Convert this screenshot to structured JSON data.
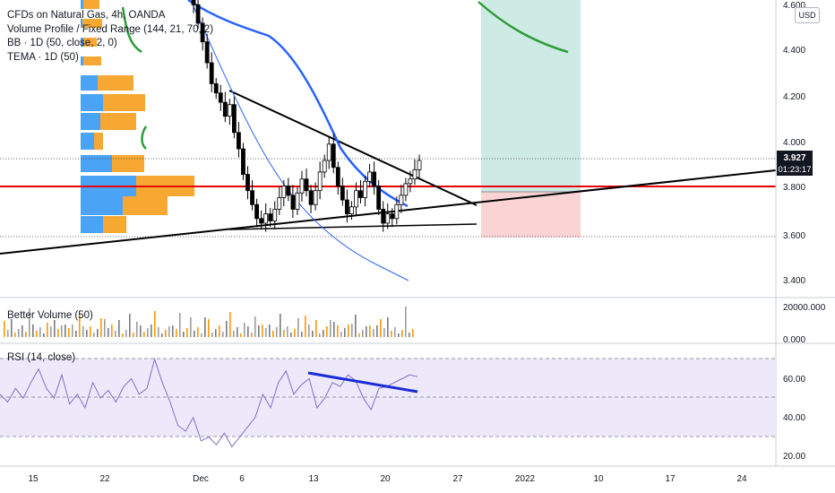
{
  "legend": {
    "symbol": "CFDs on Natural Gas, 4h, OANDA",
    "volume_profile": "Volume Profile / Fixed Range (144, 21, 70, 2)",
    "bb": "BB · 1D (50, close, 2, 0)",
    "tema": "TEMA · 1D (50)"
  },
  "currency_button": "USD",
  "price_axis": {
    "ticks": [
      "4.600",
      "4.400",
      "4.200",
      "4.000",
      "3.800",
      "3.600",
      "3.400"
    ],
    "current_price": "3.927",
    "countdown": "01:23:17"
  },
  "volume_pane": {
    "title": "Better Volume (50)",
    "ticks": [
      "20000.000",
      "0.000"
    ]
  },
  "rsi_pane": {
    "title": "RSI (14, close)",
    "ticks": [
      "60.00",
      "40.00",
      "20.00"
    ]
  },
  "time_axis": {
    "labels": [
      "15",
      "22",
      "Dec",
      "6",
      "13",
      "20",
      "27",
      "2022",
      "10",
      "17",
      "24"
    ]
  },
  "colors": {
    "up_candle": "#ffffff",
    "candle_outline": "#000000",
    "bb_line": "#2962ff",
    "ma_line": "#2e9c3a",
    "support_level": "#e60000",
    "trendline": "#000000",
    "vp_up": "#4aa3f5",
    "vp_down": "#f7a833",
    "rsi_line": "#7e6fc9",
    "rsi_band": "#ede9fa",
    "divergence_line": "#1b2bd6",
    "target_zone": "#cdeae4",
    "stop_zone": "#fad4d4"
  },
  "chart_data": {
    "type": "candlestick",
    "symbol": "Natural Gas",
    "timeframe": "4h",
    "y_range": [
      3.34,
      4.62
    ],
    "current_price": 3.927,
    "support_level": 3.8,
    "price_series_close": [
      4.66,
      4.6,
      4.52,
      4.44,
      4.35,
      4.26,
      4.22,
      4.18,
      4.12,
      4.17,
      4.05,
      3.98,
      3.87,
      3.8,
      3.74,
      3.68,
      3.66,
      3.7,
      3.67,
      3.72,
      3.77,
      3.82,
      3.78,
      3.72,
      3.79,
      3.85,
      3.8,
      3.74,
      3.8,
      3.88,
      3.93,
      4.0,
      3.9,
      3.82,
      3.76,
      3.7,
      3.73,
      3.8,
      3.77,
      3.84,
      3.88,
      3.82,
      3.72,
      3.66,
      3.7,
      3.68,
      3.74,
      3.78,
      3.83,
      3.85,
      3.89,
      3.93
    ],
    "rsi_values": [
      52,
      48,
      55,
      50,
      58,
      65,
      55,
      50,
      62,
      47,
      52,
      45,
      58,
      50,
      54,
      48,
      56,
      60,
      52,
      55,
      70,
      58,
      48,
      36,
      33,
      40,
      28,
      30,
      26,
      32,
      25,
      30,
      35,
      40,
      52,
      45,
      58,
      64,
      52,
      57,
      60,
      45,
      50,
      58,
      56,
      62,
      59,
      50,
      44,
      55,
      56,
      58,
      60,
      62,
      61
    ],
    "rsi_levels": [
      70,
      50,
      30
    ],
    "rsi_range": [
      15,
      75
    ]
  }
}
